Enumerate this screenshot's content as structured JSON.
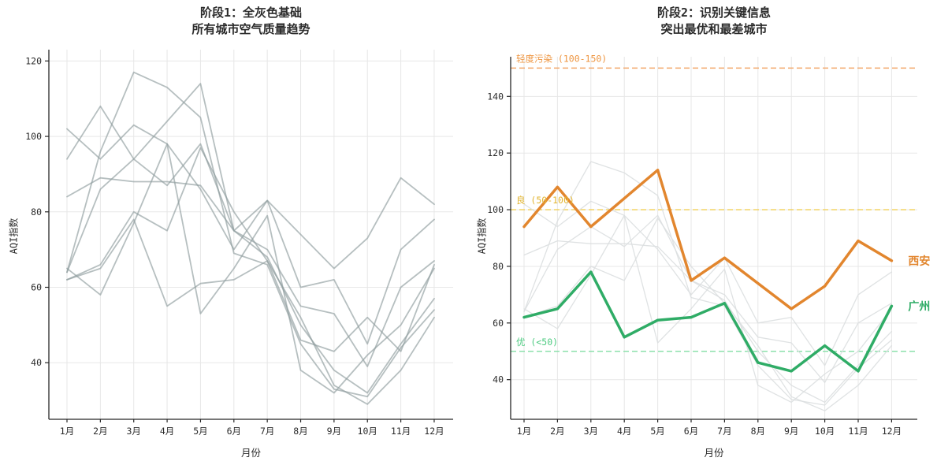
{
  "figure": {
    "background": "#ffffff",
    "title_color": "#2b2b2b",
    "axis_color": "#262626",
    "grid_color": "#e7e7e7",
    "gray_line_color": "#8f9c9e",
    "faded_gray_color": "#dcdfe0",
    "highlight_orange": "#e2862e",
    "highlight_green": "#2fac66"
  },
  "chart_data": [
    {
      "type": "line",
      "title_line1": "阶段1：全灰色基础",
      "title_line2": "所有城市空气质量趋势",
      "xlabel": "月份",
      "ylabel": "AQI指数",
      "categories": [
        "1月",
        "2月",
        "3月",
        "4月",
        "5月",
        "6月",
        "7月",
        "8月",
        "9月",
        "10月",
        "11月",
        "12月"
      ],
      "y_ticks": [
        40,
        60,
        80,
        100,
        120
      ],
      "ylim": [
        25,
        123
      ],
      "grid": true,
      "legend": "none",
      "series": [
        {
          "name": "gray-1",
          "color": "#8f9c9e",
          "width": 1.8,
          "opacity": 0.65,
          "values": [
            102,
            94,
            103,
            98,
            86,
            70,
            83,
            60,
            62,
            45,
            70,
            78
          ]
        },
        {
          "name": "gray-2",
          "color": "#8f9c9e",
          "width": 1.8,
          "opacity": 0.65,
          "values": [
            84,
            89,
            88,
            88,
            87,
            75,
            68,
            50,
            38,
            32,
            45,
            57
          ]
        },
        {
          "name": "gray-3",
          "color": "#8f9c9e",
          "width": 1.8,
          "opacity": 0.65,
          "values": [
            64,
            96,
            117,
            113,
            105,
            69,
            66,
            45,
            33,
            31,
            44,
            54
          ]
        },
        {
          "name": "gray-4",
          "color": "#8f9c9e",
          "width": 1.8,
          "opacity": 0.65,
          "values": [
            65,
            58,
            77,
            98,
            53,
            65,
            79,
            38,
            32,
            42,
            50,
            65
          ]
        },
        {
          "name": "gray-5",
          "color": "#8f9c9e",
          "width": 1.8,
          "opacity": 0.65,
          "values": [
            64,
            86,
            94,
            87,
            98,
            75,
            70,
            55,
            53,
            39,
            60,
            67
          ]
        },
        {
          "name": "gray-6",
          "color": "#8f9c9e",
          "width": 1.8,
          "opacity": 0.65,
          "values": [
            62,
            66,
            80,
            75,
            97,
            80,
            67,
            52,
            34,
            29,
            38,
            52
          ]
        },
        {
          "name": "西安",
          "color": "#8f9c9e",
          "width": 1.8,
          "opacity": 0.65,
          "values": [
            94,
            108,
            94,
            104,
            114,
            75,
            83,
            74,
            65,
            73,
            89,
            82
          ]
        },
        {
          "name": "广州",
          "color": "#8f9c9e",
          "width": 1.8,
          "opacity": 0.65,
          "values": [
            62,
            65,
            78,
            55,
            61,
            62,
            67,
            46,
            43,
            52,
            43,
            66
          ]
        }
      ]
    },
    {
      "type": "line",
      "title_line1": "阶段2：识别关键信息",
      "title_line2": "突出最优和最差城市",
      "xlabel": "月份",
      "ylabel": "AQI指数",
      "categories": [
        "1月",
        "2月",
        "3月",
        "4月",
        "5月",
        "6月",
        "7月",
        "8月",
        "9月",
        "10月",
        "11月",
        "12月"
      ],
      "y_ticks": [
        40,
        60,
        80,
        100,
        120,
        140
      ],
      "ylim": [
        26,
        154
      ],
      "grid": true,
      "legend": "inline-end-labels",
      "ref_lines": [
        {
          "label": "轻度污染 (100-150)",
          "value": 150,
          "color": "#f2a76a",
          "label_color": "#ee9540"
        },
        {
          "label": "良 (50-100)",
          "value": 100,
          "color": "#f2cf55",
          "label_color": "#e2b531"
        },
        {
          "label": "优 (<50)",
          "value": 50,
          "color": "#8ce0ab",
          "label_color": "#4fcb82"
        }
      ],
      "series": [
        {
          "name": "gray-1",
          "color": "#dcdfe0",
          "width": 1.3,
          "opacity": 0.9,
          "values": [
            102,
            94,
            103,
            98,
            86,
            70,
            83,
            60,
            62,
            45,
            70,
            78
          ]
        },
        {
          "name": "gray-2",
          "color": "#dcdfe0",
          "width": 1.3,
          "opacity": 0.9,
          "values": [
            84,
            89,
            88,
            88,
            87,
            75,
            68,
            50,
            38,
            32,
            45,
            57
          ]
        },
        {
          "name": "gray-3",
          "color": "#dcdfe0",
          "width": 1.3,
          "opacity": 0.9,
          "values": [
            64,
            96,
            117,
            113,
            105,
            69,
            66,
            45,
            33,
            31,
            44,
            54
          ]
        },
        {
          "name": "gray-4",
          "color": "#dcdfe0",
          "width": 1.3,
          "opacity": 0.9,
          "values": [
            65,
            58,
            77,
            98,
            53,
            65,
            79,
            38,
            32,
            42,
            50,
            65
          ]
        },
        {
          "name": "gray-5",
          "color": "#dcdfe0",
          "width": 1.3,
          "opacity": 0.9,
          "values": [
            64,
            86,
            94,
            87,
            98,
            75,
            70,
            55,
            53,
            39,
            60,
            67
          ]
        },
        {
          "name": "gray-6",
          "color": "#dcdfe0",
          "width": 1.3,
          "opacity": 0.9,
          "values": [
            62,
            66,
            80,
            75,
            97,
            80,
            67,
            52,
            34,
            29,
            38,
            52
          ]
        },
        {
          "name": "西安",
          "color": "#e2862e",
          "width": 3.5,
          "opacity": 1,
          "end_label": "西安",
          "values": [
            94,
            108,
            94,
            104,
            114,
            75,
            83,
            74,
            65,
            73,
            89,
            82
          ]
        },
        {
          "name": "广州",
          "color": "#2fac66",
          "width": 3.5,
          "opacity": 1,
          "end_label": "广州",
          "values": [
            62,
            65,
            78,
            55,
            61,
            62,
            67,
            46,
            43,
            52,
            43,
            66
          ]
        }
      ]
    }
  ]
}
